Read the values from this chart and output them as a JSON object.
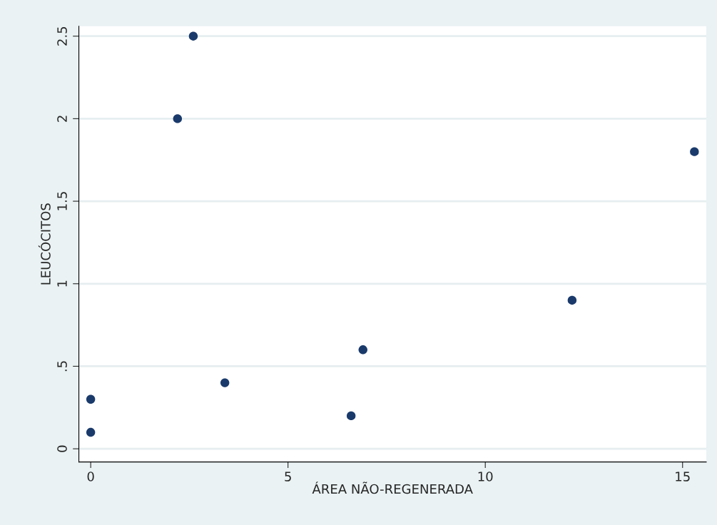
{
  "chart_data": {
    "type": "scatter",
    "xlabel": "ÁREA NÃO-REGENERADA",
    "ylabel": "LEUCÓCITOS",
    "x": [
      0,
      0,
      2.2,
      2.6,
      3.4,
      6.6,
      6.9,
      12.2,
      15.3
    ],
    "values": [
      0.3,
      0.1,
      2.0,
      2.5,
      0.4,
      0.2,
      0.6,
      0.9,
      1.8
    ],
    "color": "#1a3a6b",
    "marker": "circle",
    "xlim": [
      -0.3,
      15.6
    ],
    "ylim": [
      -0.08,
      2.56
    ],
    "xticks": [
      0,
      5,
      10,
      15
    ],
    "yticks": [
      0,
      {
        "value": 0.5,
        "label": ".5"
      },
      1,
      1.5,
      2,
      2.5
    ],
    "grid": "y",
    "legend": false
  }
}
